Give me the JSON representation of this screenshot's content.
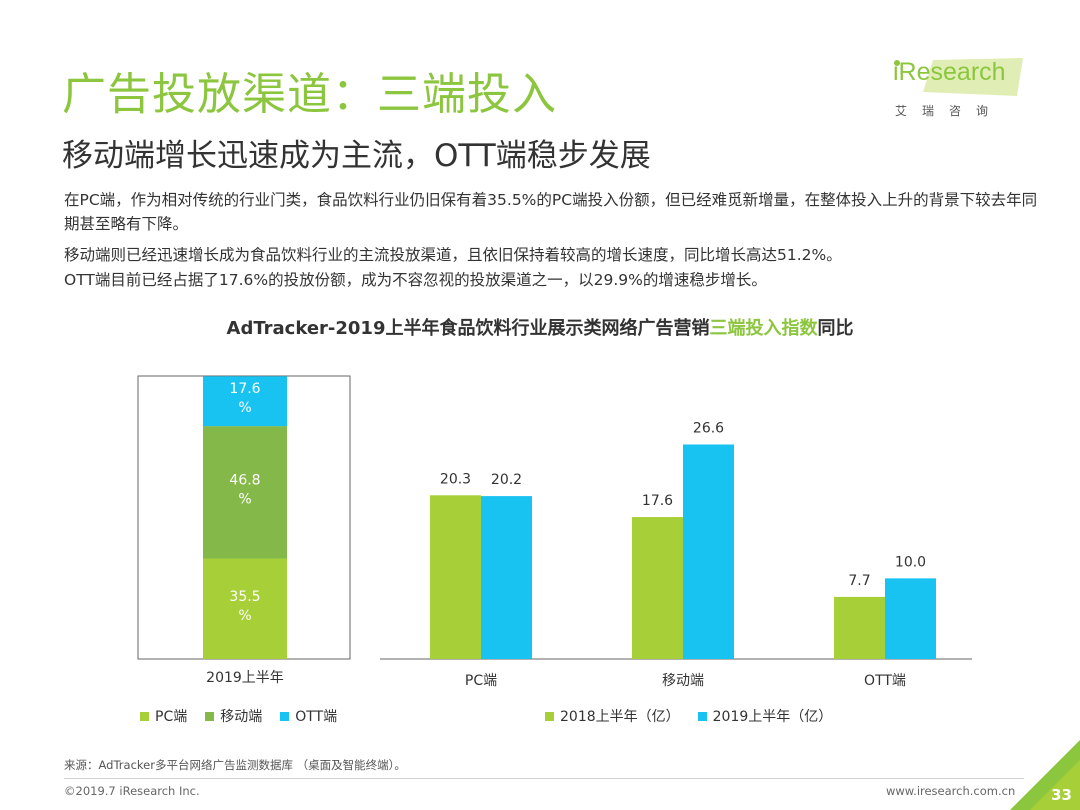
{
  "header": {
    "title": "广告投放渠道：三端投入",
    "subtitle": "移动端增长迅速成为主流，OTT端稳步发展"
  },
  "logo": {
    "name": "iResearch",
    "sub": "艾瑞咨询"
  },
  "paragraphs": {
    "p1": "在PC端，作为相对传统的行业门类，食品饮料行业仍旧保有着35.5%的PC端投入份额，但已经难觅新增量，在整体投入上升的背景下较去年同期甚至略有下降。",
    "p2": "移动端则已经迅速增长成为食品饮料行业的主流投放渠道，且依旧保持着较高的增长速度，同比增长高达51.2%。",
    "p3": "OTT端目前已经占据了17.6%的投放份额，成为不容忽视的投放渠道之一，以29.9%的增速稳步增长。"
  },
  "chart_title": {
    "prefix": "AdTracker-2019上半年食品饮料行业展示类网络广告营销",
    "highlight": "三端投入指数",
    "suffix": "同比"
  },
  "colors": {
    "green": "#a6cf38",
    "dark_green": "#84b848",
    "blue": "#18c3f2",
    "title_green": "#8cc63f"
  },
  "chart_data": [
    {
      "type": "bar",
      "stacked": true,
      "percent": true,
      "categories": [
        "2019上半年"
      ],
      "series": [
        {
          "name": "PC端",
          "values": [
            35.5
          ],
          "label": "35.5\n%"
        },
        {
          "name": "移动端",
          "values": [
            46.8
          ],
          "label": "46.8\n%"
        },
        {
          "name": "OTT端",
          "values": [
            17.6
          ],
          "label": "17.6\n%"
        }
      ],
      "ylim": [
        0,
        100
      ]
    },
    {
      "type": "bar",
      "categories": [
        "PC端",
        "移动端",
        "OTT端"
      ],
      "series": [
        {
          "name": "2018上半年（亿）",
          "values": [
            20.3,
            17.6,
            7.7
          ],
          "labels": [
            "20.3",
            "17.6",
            "7.7"
          ]
        },
        {
          "name": "2019上半年（亿）",
          "values": [
            20.2,
            26.6,
            10.0
          ],
          "labels": [
            "20.2",
            "26.6",
            "10.0"
          ]
        }
      ],
      "ylim": [
        0,
        31
      ]
    }
  ],
  "legend_left": [
    "PC端",
    "移动端",
    "OTT端"
  ],
  "legend_right": [
    "2018上半年（亿）",
    "2019上半年（亿）"
  ],
  "footer": {
    "source": "来源：AdTracker多平台网络广告监测数据库 （桌面及智能终端）。",
    "copyright": "©2019.7 iResearch Inc.",
    "website": "www.iresearch.com.cn",
    "page": "33"
  }
}
